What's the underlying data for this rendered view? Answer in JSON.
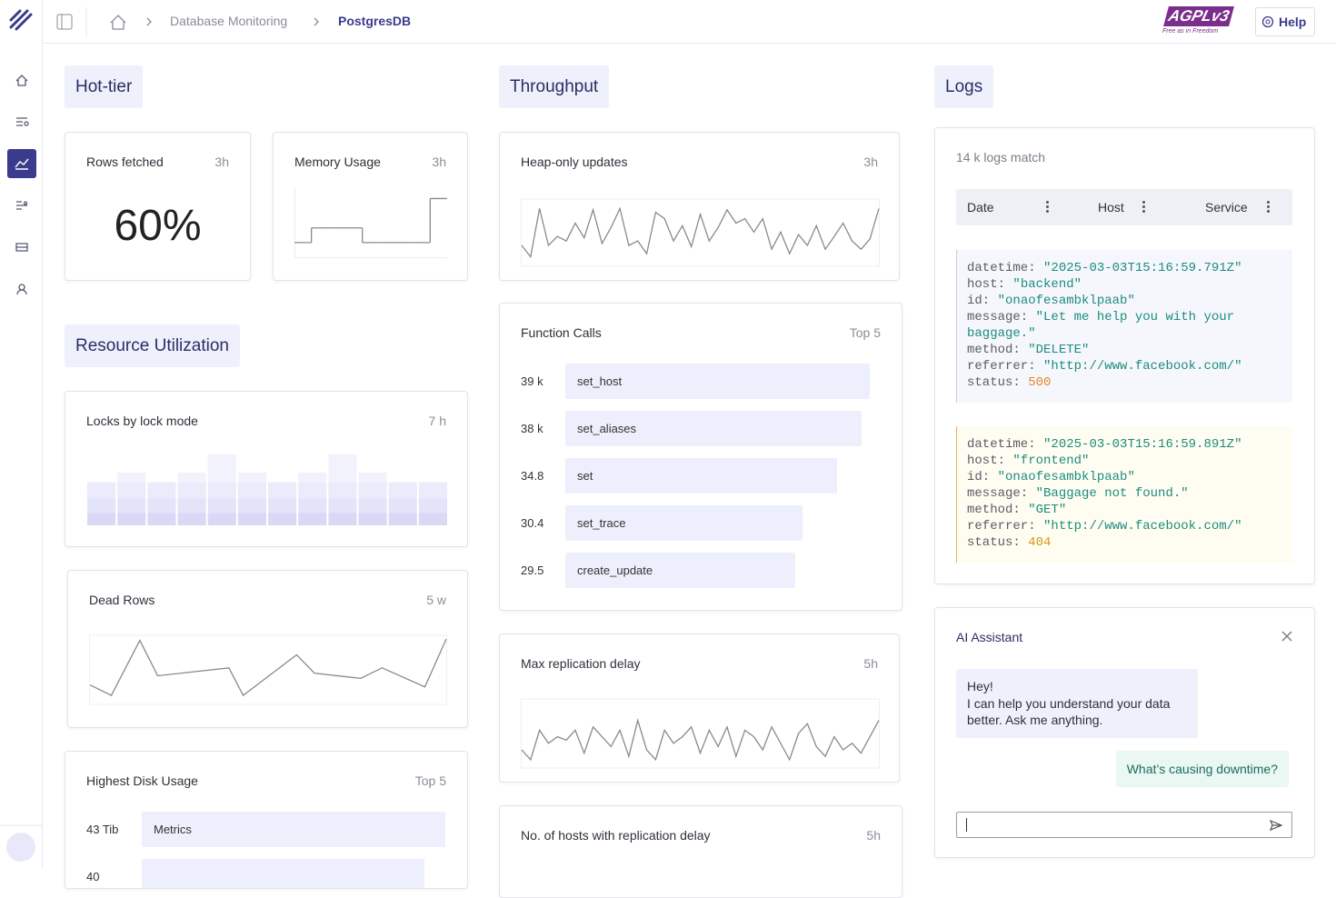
{
  "topbar": {
    "breadcrumb": [
      "Database Monitoring",
      "PostgresDB"
    ],
    "license": {
      "name": "AGPLv3",
      "tagline": "Free as in Freedom"
    },
    "help": "Help"
  },
  "sections": {
    "hot_tier": "Hot-tier",
    "resource": "Resource Utilization",
    "throughput": "Throughput",
    "logs": "Logs"
  },
  "rows_fetched": {
    "title": "Rows fetched",
    "period": "3h",
    "value": 60,
    "value_label": "60%"
  },
  "memory_usage": {
    "title": "Memory Usage",
    "period": "3h",
    "type": "step",
    "values": [
      1,
      2,
      2,
      2,
      1,
      1,
      1,
      1,
      4
    ],
    "ylim": [
      0,
      4.4
    ],
    "color": "#8a8a8a"
  },
  "locks": {
    "title": "Locks by lock mode",
    "period": "7 h",
    "type": "stacked_bar",
    "ylim": [
      0,
      90
    ],
    "series": [
      {
        "color": "#d9d9f6",
        "values": [
          14,
          14,
          14,
          14,
          14,
          14,
          14,
          14,
          14,
          14,
          14,
          14
        ]
      },
      {
        "color": "#e3e3f9",
        "values": [
          17,
          17,
          17,
          17,
          17,
          17,
          17,
          17,
          17,
          17,
          17,
          17
        ]
      },
      {
        "color": "#ebebfb",
        "values": [
          18,
          18,
          18,
          18,
          18,
          18,
          18,
          18,
          18,
          18,
          18,
          18
        ]
      },
      {
        "color": "#f2f2fd",
        "values": [
          0,
          11,
          0,
          11,
          32,
          11,
          0,
          11,
          32,
          11,
          0,
          0
        ]
      }
    ]
  },
  "dead_rows": {
    "title": "Dead Rows",
    "period": "5 w",
    "type": "line",
    "x": [
      0,
      6,
      14,
      19,
      39,
      43,
      58,
      63,
      76,
      82,
      94,
      100
    ],
    "values": [
      27,
      11,
      95,
      41,
      53,
      11,
      73,
      45,
      37,
      53,
      24,
      97
    ],
    "xlim": [
      0,
      100
    ],
    "ylim": [
      0,
      100
    ],
    "color": "#8a8a8a"
  },
  "disk_usage": {
    "title": "Highest Disk Usage",
    "period": "Top 5",
    "type": "hbar",
    "categories": [
      "Metrics",
      null
    ],
    "values": [
      43,
      40
    ],
    "value_labels": [
      "43 Tib",
      null
    ],
    "color": "#eeeffc"
  },
  "heap_updates": {
    "title": "Heap-only updates",
    "period": "3h",
    "type": "line",
    "values": [
      30,
      12,
      88,
      30,
      44,
      37,
      65,
      42,
      86,
      33,
      58,
      88,
      30,
      37,
      17,
      82,
      72,
      37,
      61,
      28,
      79,
      37,
      58,
      86,
      65,
      72,
      51,
      72,
      24,
      51,
      17,
      47,
      30,
      61,
      24,
      44,
      65,
      37,
      24,
      40,
      88
    ],
    "ylim": [
      0,
      100
    ],
    "color": "#8a8a8a"
  },
  "function_calls": {
    "title": "Function Calls",
    "period": "Top 5",
    "type": "hbar",
    "categories": [
      "set_host",
      "set_aliases",
      "set",
      "set_trace",
      "create_update"
    ],
    "values": [
      39,
      38,
      34.8,
      30.4,
      29.5
    ],
    "value_labels": [
      "39 k",
      "38 k",
      null,
      null,
      null
    ],
    "color": "#eeeffc"
  },
  "replication_delay": {
    "title": "Max replication delay",
    "period": "5h",
    "type": "line",
    "values": [
      25,
      10,
      55,
      35,
      45,
      40,
      55,
      20,
      60,
      45,
      30,
      55,
      15,
      70,
      25,
      10,
      55,
      35,
      45,
      60,
      20,
      55,
      30,
      60,
      15,
      55,
      45,
      25,
      60,
      35,
      10,
      50,
      65,
      30,
      15,
      45,
      25,
      35,
      20,
      45,
      70
    ],
    "ylim": [
      0,
      100
    ],
    "color": "#8a8a8a"
  },
  "hosts_delay": {
    "title": "No. of hosts with replication delay",
    "period": "5h"
  },
  "logs": {
    "count": "14 k logs match",
    "columns": [
      "Date",
      "Host",
      "Service"
    ],
    "entries": [
      {
        "background": "#f6f7fc",
        "border": "#c9cbd8",
        "fields": [
          {
            "key": "datetime:",
            "value": "\"2025-03-03T15:16:59.791Z\""
          },
          {
            "key": "host:",
            "value": "\"backend\""
          },
          {
            "key": "id:",
            "value": "\"onaofesambklpaab\""
          },
          {
            "key": "message:",
            "value": "\"Let me help you with your baggage.\""
          },
          {
            "key": "method:",
            "value": "\"DELETE\""
          },
          {
            "key": "referrer:",
            "value": "\"http://www.facebook.com/\""
          },
          {
            "key": "status:",
            "value": 500,
            "color": "#e8842a"
          }
        ]
      },
      {
        "background": "#fffdf1",
        "border": "#e3b567",
        "fields": [
          {
            "key": "datetime:",
            "value": "\"2025-03-03T15:16:59.891Z\""
          },
          {
            "key": "host:",
            "value": "\"frontend\""
          },
          {
            "key": "id:",
            "value": "\"onaofesambklpaab\""
          },
          {
            "key": "message:",
            "value": "\"Baggage not found.\""
          },
          {
            "key": "method:",
            "value": "\"GET\""
          },
          {
            "key": "referrer:",
            "value": "\"http://www.facebook.com/\""
          },
          {
            "key": "status:",
            "value": 404,
            "color": "#d39a1c"
          }
        ]
      }
    ]
  },
  "ai_assistant": {
    "title": "AI Assistant",
    "reply_lines": [
      "Hey!",
      "I can help you understand your data better. Ask me anything."
    ],
    "question": "What’s causing downtime?"
  }
}
